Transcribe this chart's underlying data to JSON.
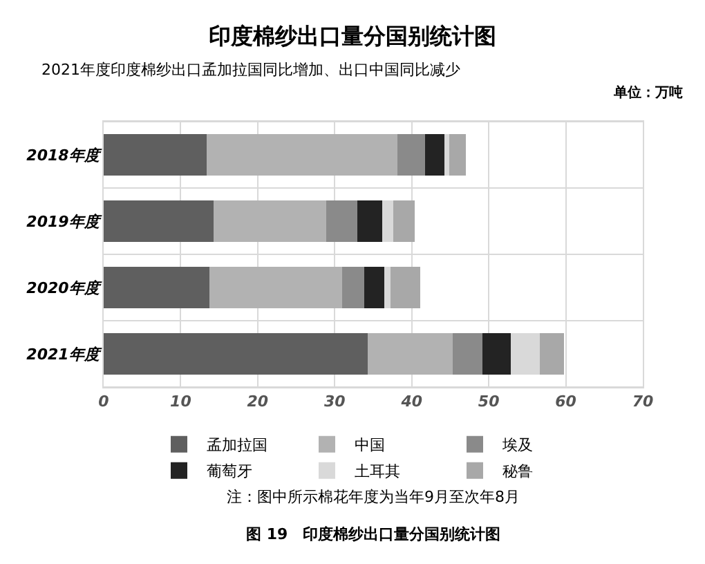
{
  "chart_data": {
    "type": "bar",
    "orientation": "horizontal",
    "stacked": true,
    "title": "印度棉纱出口量分国别统计图",
    "subtitle": "2021年度印度棉纱出口孟加拉国同比增加、出口中国同比减少",
    "annotations": [
      "单位：万吨",
      "注：图中所示棉花年度为当年9月至次年8月",
      "图 19　印度棉纱出口量分国别统计图"
    ],
    "categories": [
      "2018年度",
      "2019年度",
      "2020年度",
      "2021年度"
    ],
    "series": [
      {
        "name": "孟加拉国",
        "color": "#5f5f5f",
        "values": [
          13.4,
          14.3,
          13.7,
          34.3
        ]
      },
      {
        "name": "中国",
        "color": "#b2b2b2",
        "values": [
          24.7,
          14.6,
          17.3,
          11.0
        ]
      },
      {
        "name": "埃及",
        "color": "#8a8a8a",
        "values": [
          3.6,
          4.0,
          2.8,
          3.9
        ]
      },
      {
        "name": "葡萄牙",
        "color": "#232323",
        "values": [
          2.5,
          3.3,
          2.6,
          3.7
        ]
      },
      {
        "name": "土耳其",
        "color": "#d9d9d9",
        "values": [
          0.7,
          1.4,
          0.8,
          3.7
        ]
      },
      {
        "name": "秘鲁",
        "color": "#a8a8a8",
        "values": [
          2.1,
          2.8,
          3.9,
          3.2
        ]
      }
    ],
    "xlim": [
      0,
      70
    ],
    "xticks": [
      0,
      10,
      20,
      30,
      40,
      50,
      60,
      70
    ],
    "grid": "x",
    "legend": "bottom"
  }
}
